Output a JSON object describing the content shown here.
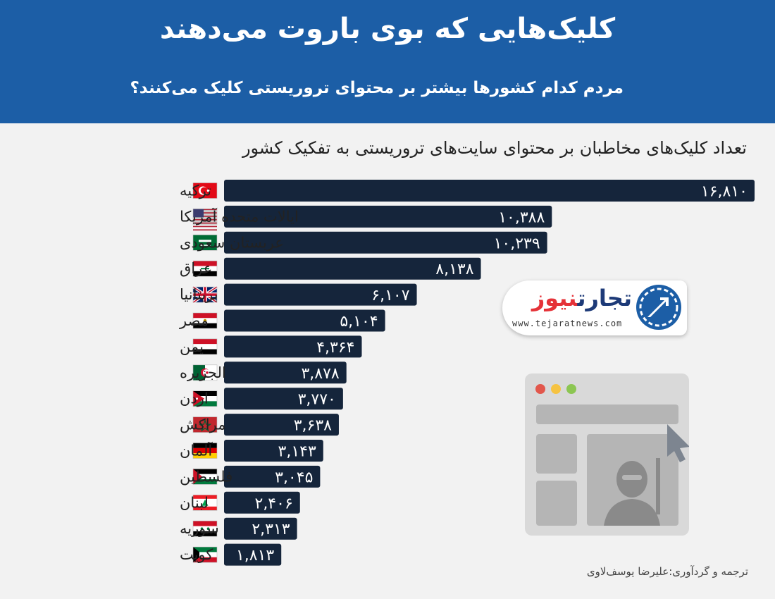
{
  "header": {
    "title": "کلیک‌هایی که بوی باروت می‌دهند",
    "subtitle": "مردم کدام کشورها بیشتر بر محتوای تروریستی کلیک می‌کنند؟"
  },
  "logo": {
    "name_part1": "تجارت",
    "name_part2": "نیوز",
    "url": "www.tejaratnews.com"
  },
  "credit": "ترجمه و گردآوری:علیرضا یوسف‌لاوی",
  "colors": {
    "header_bg": "#1c5ea6",
    "bar": "#15253b",
    "background": "#f2f2f2"
  },
  "chart_data": {
    "type": "bar",
    "orientation": "horizontal",
    "title": "تعداد کلیک‌های مخاطبان بر محتوای سایت‌های تروریستی به تفکیک کشور",
    "categories": [
      "ترکیه",
      "ایالات متحده آمریکا",
      "عربستان سعودی",
      "عراق",
      "بریتانیا",
      "مصر",
      "یمن",
      "الجزیره",
      "اردن",
      "مراکش",
      "آلمان",
      "فلسطین",
      "لبنان",
      "سوریه",
      "کویت"
    ],
    "values": [
      16810,
      10388,
      10239,
      8138,
      6107,
      5104,
      4364,
      3878,
      3770,
      3638,
      3143,
      3045,
      2406,
      2313,
      1813
    ],
    "value_labels": [
      "۱۶,۸۱۰",
      "۱۰,۳۸۸",
      "۱۰,۲۳۹",
      "۸,۱۳۸",
      "۶,۱۰۷",
      "۵,۱۰۴",
      "۴,۳۶۴",
      "۳,۸۷۸",
      "۳,۷۷۰",
      "۳,۶۳۸",
      "۳,۱۴۳",
      "۳,۰۴۵",
      "۲,۴۰۶",
      "۲,۳۱۳",
      "۱,۸۱۳"
    ],
    "flags": [
      "turkey-flag",
      "usa-flag",
      "saudi-arabia-flag",
      "iraq-flag",
      "uk-flag",
      "egypt-flag",
      "yemen-flag",
      "algeria-flag",
      "jordan-flag",
      "morocco-flag",
      "germany-flag",
      "palestine-flag",
      "lebanon-flag",
      "syria-flag",
      "kuwait-flag"
    ],
    "grid": false,
    "legend": "none"
  }
}
